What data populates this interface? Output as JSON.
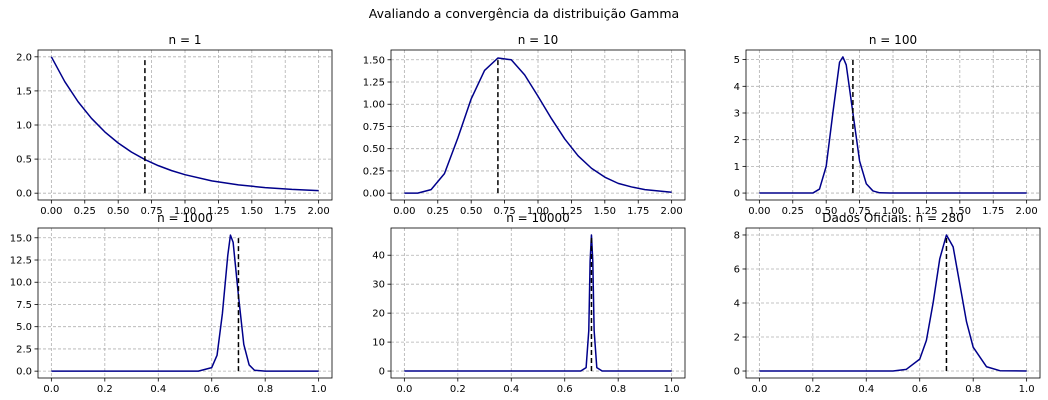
{
  "figure": {
    "suptitle": "Avaliando a convergência da distribuição Gamma"
  },
  "style": {
    "curve_color": "#00008b",
    "ref_color": "#000000",
    "grid_color": "#b0b0b0"
  },
  "chart_data": [
    {
      "type": "line",
      "title": "n = 1",
      "xlim": [
        -0.1,
        2.1
      ],
      "ylim": [
        -0.1,
        2.1
      ],
      "xticks": [
        "0.00",
        "0.25",
        "0.50",
        "0.75",
        "1.00",
        "1.25",
        "1.50",
        "1.75",
        "2.00"
      ],
      "yticks": [
        "0.0",
        "0.5",
        "1.0",
        "1.5",
        "2.0"
      ],
      "grid": true,
      "series": [
        {
          "values": {
            "x": [
              0.0,
              0.1,
              0.2,
              0.3,
              0.4,
              0.5,
              0.6,
              0.7,
              0.8,
              0.9,
              1.0,
              1.2,
              1.4,
              1.6,
              1.8,
              2.0
            ],
            "y": [
              2.0,
              1.637,
              1.341,
              1.098,
              0.899,
              0.736,
              0.602,
              0.493,
              0.404,
              0.331,
              0.271,
              0.181,
              0.122,
              0.082,
              0.055,
              0.037
            ]
          }
        }
      ],
      "reference_line": {
        "x": 0.7,
        "y_from": 0,
        "y_to": 2.0
      }
    },
    {
      "type": "line",
      "title": "n = 10",
      "xlim": [
        -0.1,
        2.1
      ],
      "ylim": [
        -0.077,
        1.61
      ],
      "xticks": [
        "0.00",
        "0.25",
        "0.50",
        "0.75",
        "1.00",
        "1.25",
        "1.50",
        "1.75",
        "2.00"
      ],
      "yticks": [
        "0.00",
        "0.25",
        "0.50",
        "0.75",
        "1.00",
        "1.25",
        "1.50"
      ],
      "grid": true,
      "series": [
        {
          "values": {
            "x": [
              0.0,
              0.1,
              0.2,
              0.3,
              0.4,
              0.5,
              0.6,
              0.7,
              0.8,
              0.9,
              1.0,
              1.1,
              1.2,
              1.3,
              1.4,
              1.5,
              1.6,
              1.7,
              1.8,
              2.0
            ],
            "y": [
              0.0,
              0.0,
              0.04,
              0.22,
              0.62,
              1.06,
              1.38,
              1.52,
              1.5,
              1.33,
              1.09,
              0.84,
              0.61,
              0.42,
              0.28,
              0.18,
              0.11,
              0.07,
              0.04,
              0.01
            ]
          }
        }
      ],
      "reference_line": {
        "x": 0.7,
        "y_from": 0,
        "y_to": 1.52
      }
    },
    {
      "type": "line",
      "title": "n = 100",
      "xlim": [
        -0.1,
        2.1
      ],
      "ylim": [
        -0.26,
        5.36
      ],
      "xticks": [
        "0.00",
        "0.25",
        "0.50",
        "0.75",
        "1.00",
        "1.25",
        "1.50",
        "1.75",
        "2.00"
      ],
      "yticks": [
        "0",
        "1",
        "2",
        "3",
        "4",
        "5"
      ],
      "grid": true,
      "series": [
        {
          "values": {
            "x": [
              0.0,
              0.4,
              0.45,
              0.5,
              0.55,
              0.6,
              0.625,
              0.65,
              0.7,
              0.75,
              0.8,
              0.85,
              0.9,
              1.0,
              2.0
            ],
            "y": [
              0.0,
              0.0,
              0.15,
              1.0,
              3.0,
              4.9,
              5.1,
              4.8,
              3.0,
              1.2,
              0.35,
              0.08,
              0.01,
              0.0,
              0.0
            ]
          }
        }
      ],
      "reference_line": {
        "x": 0.7,
        "y_from": 0,
        "y_to": 5.0
      }
    },
    {
      "type": "line",
      "title": "n = 1000",
      "xlim": [
        -0.05,
        1.05
      ],
      "ylim": [
        -0.77,
        16.1
      ],
      "xticks": [
        "0.0",
        "0.2",
        "0.4",
        "0.6",
        "0.8",
        "1.0"
      ],
      "yticks": [
        "0.0",
        "2.5",
        "5.0",
        "7.5",
        "10.0",
        "12.5",
        "15.0"
      ],
      "grid": true,
      "series": [
        {
          "values": {
            "x": [
              0.0,
              0.55,
              0.6,
              0.62,
              0.64,
              0.66,
              0.67,
              0.68,
              0.7,
              0.72,
              0.74,
              0.76,
              0.8,
              1.0
            ],
            "y": [
              0.0,
              0.0,
              0.4,
              1.8,
              6.5,
              13.0,
              15.3,
              14.5,
              8.5,
              3.0,
              0.7,
              0.1,
              0.0,
              0.0
            ]
          }
        }
      ],
      "reference_line": {
        "x": 0.7,
        "y_from": 0,
        "y_to": 15.2
      }
    },
    {
      "type": "line",
      "title": "n = 10000",
      "xlim": [
        -0.05,
        1.05
      ],
      "ylim": [
        -2.4,
        49.4
      ],
      "xticks": [
        "0.0",
        "0.2",
        "0.4",
        "0.6",
        "0.8",
        "1.0"
      ],
      "yticks": [
        "0",
        "10",
        "20",
        "30",
        "40"
      ],
      "grid": true,
      "series": [
        {
          "values": {
            "x": [
              0.0,
              0.66,
              0.68,
              0.69,
              0.695,
              0.7,
              0.705,
              0.71,
              0.72,
              0.74,
              1.0
            ],
            "y": [
              0.0,
              0.0,
              1.2,
              14.0,
              38.0,
              47.0,
              38.0,
              14.0,
              1.2,
              0.0,
              0.0
            ]
          }
        }
      ],
      "reference_line": {
        "x": 0.7,
        "y_from": 0,
        "y_to": 47.0
      }
    },
    {
      "type": "line",
      "title": "Dados Oficiais: n = 280",
      "xlim": [
        -0.05,
        1.05
      ],
      "ylim": [
        -0.41,
        8.41
      ],
      "xticks": [
        "0.0",
        "0.2",
        "0.4",
        "0.6",
        "0.8",
        "1.0"
      ],
      "yticks": [
        "0",
        "2",
        "4",
        "6",
        "8"
      ],
      "grid": true,
      "series": [
        {
          "values": {
            "x": [
              0.0,
              0.5,
              0.55,
              0.6,
              0.625,
              0.65,
              0.675,
              0.7,
              0.725,
              0.75,
              0.775,
              0.8,
              0.85,
              0.9,
              1.0
            ],
            "y": [
              0.0,
              0.0,
              0.1,
              0.7,
              1.8,
              4.0,
              6.6,
              8.0,
              7.3,
              5.1,
              2.9,
              1.4,
              0.25,
              0.02,
              0.0
            ]
          }
        }
      ],
      "reference_line": {
        "x": 0.7,
        "y_from": 0,
        "y_to": 7.9
      }
    }
  ]
}
